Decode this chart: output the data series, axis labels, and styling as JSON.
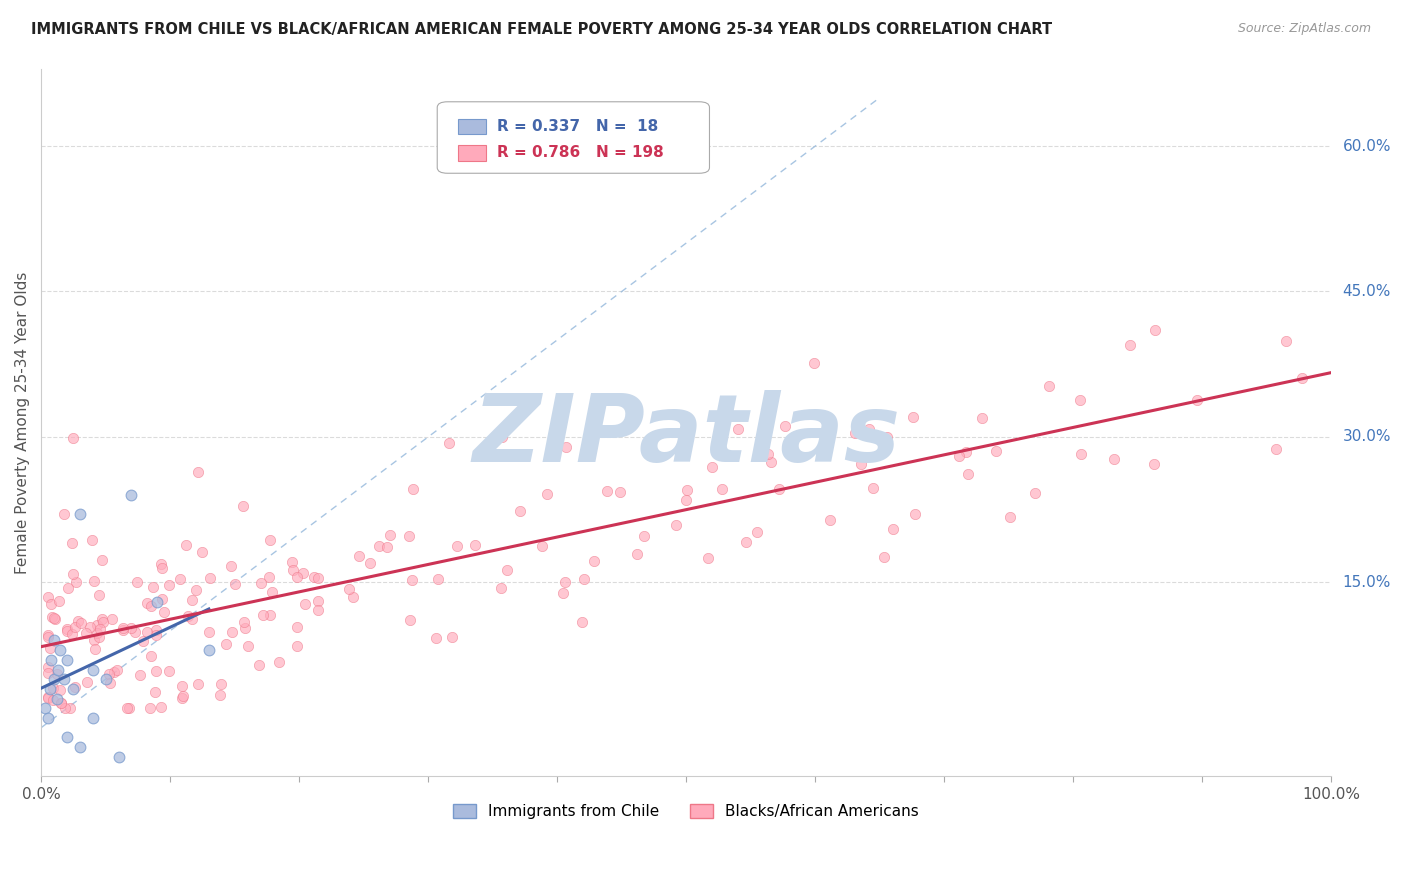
{
  "title": "IMMIGRANTS FROM CHILE VS BLACK/AFRICAN AMERICAN FEMALE POVERTY AMONG 25-34 YEAR OLDS CORRELATION CHART",
  "source": "Source: ZipAtlas.com",
  "ylabel": "Female Poverty Among 25-34 Year Olds",
  "xlim": [
    0,
    1.0
  ],
  "ylim": [
    -0.05,
    0.68
  ],
  "ytick_positions": [
    0.15,
    0.3,
    0.45,
    0.6
  ],
  "ytick_labels": [
    "15.0%",
    "30.0%",
    "45.0%",
    "60.0%"
  ],
  "legend_r1": "R = 0.337",
  "legend_n1": "N =  18",
  "legend_r2": "R = 0.786",
  "legend_n2": "N = 198",
  "color_blue_fill": "#aabbdd",
  "color_blue_edge": "#7799cc",
  "color_pink_fill": "#ffaabb",
  "color_pink_edge": "#ee7788",
  "color_trendline_blue": "#4466aa",
  "color_trendline_pink": "#cc3355",
  "color_diagonal": "#99bbdd",
  "color_grid": "#cccccc",
  "color_ytick_label": "#4477bb",
  "watermark_text": "ZIPatlas",
  "watermark_color": "#c8d8ea"
}
